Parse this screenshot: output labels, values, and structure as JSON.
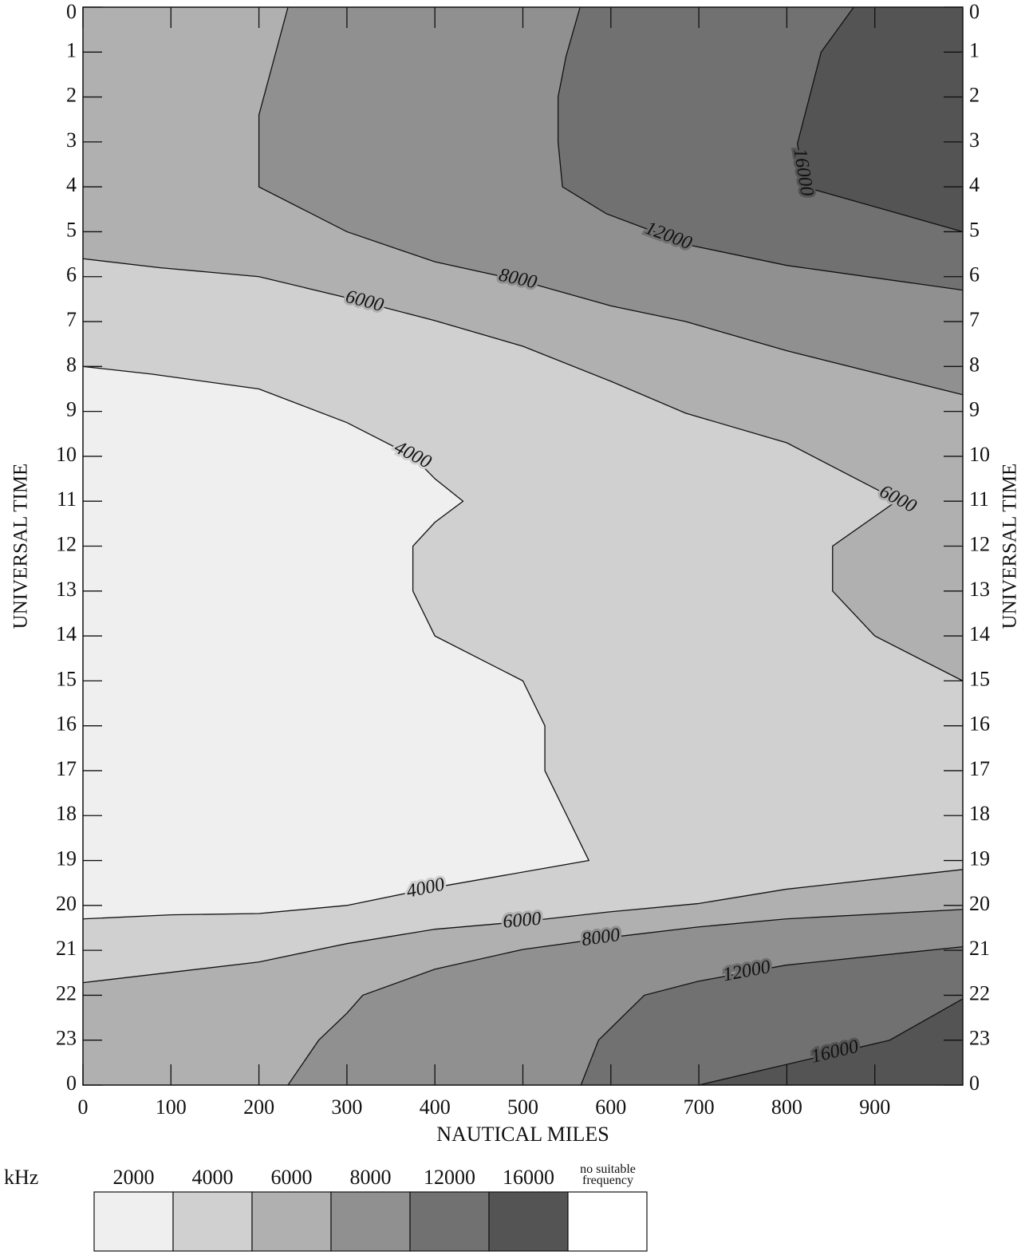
{
  "chart_data": {
    "type": "contour",
    "xlabel": "NAUTICAL MILES",
    "ylabel": "UNIVERSAL TIME",
    "xlim": [
      0,
      1000
    ],
    "xticks": [
      0,
      100,
      200,
      300,
      400,
      500,
      600,
      700,
      800,
      900
    ],
    "ylim": [
      0,
      24
    ],
    "y_reversed": true,
    "yticks": [
      0,
      1,
      2,
      3,
      4,
      5,
      6,
      7,
      8,
      9,
      10,
      11,
      12,
      13,
      14,
      15,
      16,
      17,
      18,
      19,
      20,
      21,
      22,
      23,
      {
        "value": 24,
        "label": "0"
      }
    ],
    "legend": {
      "title": "kHz",
      "levels": [
        2000,
        4000,
        6000,
        8000,
        12000,
        16000
      ],
      "colors": [
        "#efefef",
        "#d0d0d0",
        "#b0b0b0",
        "#909090",
        "#717171",
        "#545454"
      ],
      "none_label": "no suitable frequency",
      "none_color": "#ffffff"
    },
    "contours": [
      {
        "level": 4000,
        "x": [
          0,
          100,
          200,
          300,
          400,
          575,
          525,
          525,
          500,
          400,
          375,
          375,
          400,
          432,
          400,
          375,
          300,
          200,
          78,
          0
        ],
        "y": [
          20.3,
          20.21,
          20.18,
          20,
          19.6,
          19,
          17,
          16,
          15,
          14,
          13,
          12,
          11.47,
          11,
          10.5,
          10,
          9.25,
          8.5,
          8.17,
          8
        ]
      },
      {
        "level": 6000,
        "x": [
          1000,
          900,
          852,
          852,
          926,
          800,
          685,
          600,
          500,
          400,
          300,
          200,
          87,
          0
        ],
        "y": [
          15,
          14,
          13,
          12,
          10.98,
          9.7,
          9.04,
          8.33,
          7.55,
          6.98,
          6.47,
          6,
          5.8,
          5.6
        ]
      },
      {
        "level": 6000,
        "x": [
          0,
          200,
          268,
          300,
          400,
          500,
          600,
          699,
          799,
          1000
        ],
        "y": [
          21.72,
          21.26,
          20.98,
          20.85,
          20.53,
          20.36,
          20.14,
          19.96,
          19.64,
          19.2
        ]
      },
      {
        "level": 8000,
        "x": [
          1000,
          800,
          685,
          600,
          500,
          400,
          300,
          200,
          200,
          233
        ],
        "y": [
          8.63,
          7.65,
          7,
          6.65,
          6.1,
          5.67,
          5,
          4,
          2.4,
          0
        ]
      },
      {
        "level": 8000,
        "x": [
          233,
          268,
          300,
          318,
          400,
          500,
          600,
          699,
          799,
          1000
        ],
        "y": [
          24,
          23,
          22.4,
          22,
          21.42,
          20.98,
          20.71,
          20.48,
          20.3,
          20.09
        ]
      },
      {
        "level": 12000,
        "x": [
          1000,
          800,
          690,
          595,
          545,
          540,
          540,
          549,
          565
        ],
        "y": [
          6.3,
          5.75,
          5.3,
          4.6,
          4,
          3,
          2,
          1.1,
          0
        ]
      },
      {
        "level": 12000,
        "x": [
          566,
          586,
          638,
          699,
          799,
          1000
        ],
        "y": [
          24,
          23,
          22,
          21.69,
          21.33,
          20.92
        ]
      },
      {
        "level": 16000,
        "x": [
          1000,
          820,
          812,
          839,
          876
        ],
        "y": [
          5,
          4,
          3.04,
          1,
          0
        ]
      },
      {
        "level": 16000,
        "x": [
          700,
          917,
          1000
        ],
        "y": [
          24,
          23,
          22.08
        ]
      }
    ]
  }
}
